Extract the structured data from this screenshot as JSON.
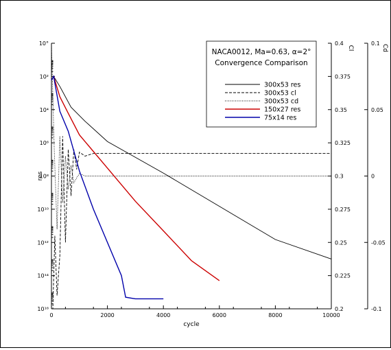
{
  "chart_data": {
    "type": "line",
    "title_lines": [
      "NACA0012, Ma=0.63, α=2°",
      "Convergence Comparison"
    ],
    "xlabel": "cycle",
    "ylabel_left": "res",
    "ylabel_cl": "Cl",
    "ylabel_cd": "Cd",
    "xlim": [
      0,
      10000
    ],
    "y_res_lim": [
      1e-16,
      1
    ],
    "y_res_scale": "log",
    "y_cl_lim": [
      0.2,
      0.4
    ],
    "y_cd_lim": [
      -0.1,
      0.1
    ],
    "grid": false,
    "legend_position": "top-right",
    "x_ticks": [
      "0",
      "2000",
      "4000",
      "6000",
      "8000",
      "10000"
    ],
    "y_res_ticks": [
      "10°",
      "10²",
      "10⁴",
      "10⁶",
      "10⁸",
      "10¹⁰",
      "10¹²",
      "10¹⁴",
      "10¹⁶"
    ],
    "y_cl_ticks": [
      "0.4",
      "0.375",
      "0.35",
      "0.325",
      "0.3",
      "0.275",
      "0.25",
      "0.225",
      "0.2"
    ],
    "y_cd_ticks": [
      "0.1",
      "0.05",
      "0",
      "-0.05",
      "-0.1"
    ],
    "series": [
      {
        "name": "300x53 res",
        "axis": "res",
        "color": "#000000",
        "dash": "solid",
        "x": [
          0,
          80,
          300,
          700,
          1200,
          2000,
          4000,
          6000,
          8000,
          10000
        ],
        "y": [
          0.006,
          0.01,
          0.0025,
          0.00014,
          2e-05,
          1.2e-06,
          1.5e-08,
          1.5e-10,
          1.5e-12,
          1e-13
        ]
      },
      {
        "name": "300x53 cl",
        "axis": "cl",
        "color": "#000000",
        "dash": "dashed",
        "x": [
          0,
          50,
          120,
          200,
          300,
          400,
          500,
          600,
          700,
          800,
          900,
          1000,
          1200,
          1500,
          2000,
          4000,
          6000,
          8000,
          10000
        ],
        "y": [
          0.2,
          0.2,
          0.255,
          0.21,
          0.24,
          0.33,
          0.25,
          0.32,
          0.285,
          0.32,
          0.305,
          0.318,
          0.315,
          0.317,
          0.317,
          0.317,
          0.317,
          0.317,
          0.317
        ]
      },
      {
        "name": "300x53 cd",
        "axis": "cd",
        "color": "#000000",
        "dash": "dotted",
        "x": [
          0,
          100,
          200,
          300,
          400,
          500,
          600,
          700,
          800,
          1000,
          1200,
          1500,
          2000,
          4000,
          6000,
          8000,
          10000
        ],
        "y": [
          0.1,
          0.02,
          -0.04,
          0.03,
          -0.02,
          0.015,
          -0.01,
          0.008,
          -0.005,
          0.002,
          0,
          0,
          0,
          0,
          0,
          0,
          0
        ]
      },
      {
        "name": "150x27 res",
        "axis": "res",
        "color": "#cc0000",
        "dash": "solid",
        "x": [
          0,
          80,
          300,
          600,
          1000,
          2000,
          3000,
          4000,
          5000,
          6000
        ],
        "y": [
          0.006,
          0.01,
          0.0006,
          6e-05,
          3e-06,
          3e-08,
          3e-10,
          5e-12,
          8e-14,
          5e-15
        ]
      },
      {
        "name": "75x14 res",
        "axis": "res",
        "color": "#0000aa",
        "dash": "solid",
        "x": [
          0,
          80,
          300,
          600,
          1000,
          1500,
          2000,
          2500,
          2650,
          3000,
          4000
        ],
        "y": [
          0.006,
          0.01,
          8e-05,
          5e-06,
          2e-08,
          1e-10,
          1e-12,
          1e-14,
          5e-16,
          4e-16,
          4e-16
        ]
      }
    ]
  }
}
